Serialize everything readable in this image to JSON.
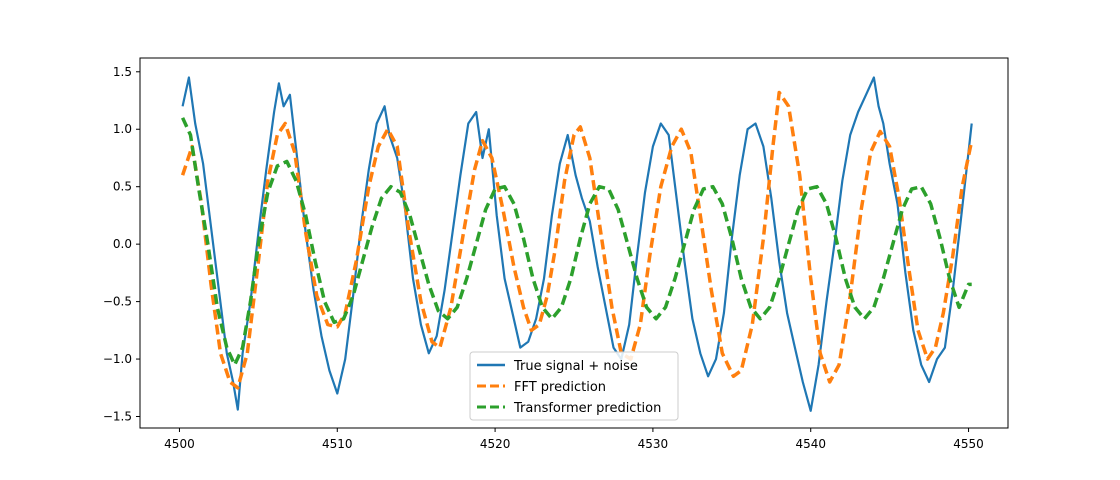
{
  "chart_data": {
    "type": "line",
    "title": "",
    "xlabel": "",
    "ylabel": "",
    "xlim": [
      4497.5,
      4552.5
    ],
    "ylim": [
      -1.6,
      1.62
    ],
    "xticks": [
      4500,
      4510,
      4520,
      4530,
      4540,
      4550
    ],
    "xtick_labels": [
      "4500",
      "4510",
      "4520",
      "4530",
      "4540",
      "4550"
    ],
    "yticks": [
      -1.5,
      -1.0,
      -0.5,
      0.0,
      0.5,
      1.0,
      1.5
    ],
    "ytick_labels": [
      "−1.5",
      "−1.0",
      "−0.5",
      "0.0",
      "0.5",
      "1.0",
      "1.5"
    ],
    "grid": false,
    "legend_position": "bottom-center",
    "series": [
      {
        "name": "True signal + noise",
        "color": "#1f77b4",
        "style": "solid",
        "x": [
          4500.2,
          4500.6,
          4501.0,
          4501.5,
          4502.0,
          4502.5,
          4503.0,
          4503.4,
          4503.7,
          4504.0,
          4504.5,
          4505.0,
          4505.5,
          4506.0,
          4506.3,
          4506.6,
          4507.0,
          4507.5,
          4508.0,
          4508.5,
          4509.0,
          4509.5,
          4510.0,
          4510.5,
          4511.0,
          4511.5,
          4512.0,
          4512.5,
          4513.0,
          4513.3,
          4513.8,
          4514.3,
          4514.8,
          4515.3,
          4515.8,
          4516.3,
          4516.8,
          4517.3,
          4517.8,
          4518.3,
          4518.8,
          4519.2,
          4519.6,
          4520.1,
          4520.6,
          4521.1,
          4521.6,
          4522.1,
          4522.6,
          4523.1,
          4523.6,
          4524.1,
          4524.6,
          4525.1,
          4525.5,
          4526.0,
          4526.5,
          4527.0,
          4527.5,
          4528.0,
          4528.5,
          4529.0,
          4529.5,
          4530.0,
          4530.5,
          4531.0,
          4531.5,
          4532.0,
          4532.5,
          4533.0,
          4533.5,
          4534.0,
          4534.5,
          4535.0,
          4535.5,
          4536.0,
          4536.5,
          4537.0,
          4537.5,
          4538.0,
          4538.5,
          4539.0,
          4539.5,
          4540.0,
          4540.5,
          4541.0,
          4541.5,
          4542.0,
          4542.5,
          4543.0,
          4543.5,
          4544.0,
          4544.3,
          4544.6,
          4545.0,
          4545.5,
          4546.0,
          4546.5,
          4547.0,
          4547.5,
          4548.0,
          4548.5,
          4549.0,
          4549.5,
          4550.0,
          4550.2
        ],
        "values": [
          1.2,
          1.45,
          1.05,
          0.7,
          0.15,
          -0.4,
          -0.95,
          -1.2,
          -1.44,
          -0.95,
          -0.5,
          0.1,
          0.65,
          1.15,
          1.4,
          1.2,
          1.3,
          0.7,
          0.1,
          -0.4,
          -0.8,
          -1.1,
          -1.3,
          -1.0,
          -0.45,
          0.15,
          0.65,
          1.05,
          1.2,
          0.95,
          0.75,
          0.3,
          -0.3,
          -0.7,
          -0.95,
          -0.8,
          -0.4,
          0.1,
          0.6,
          1.05,
          1.15,
          0.75,
          1.0,
          0.25,
          -0.3,
          -0.6,
          -0.9,
          -0.85,
          -0.65,
          -0.3,
          0.25,
          0.7,
          0.95,
          0.6,
          0.4,
          0.2,
          -0.2,
          -0.55,
          -0.9,
          -1.0,
          -0.7,
          -0.1,
          0.45,
          0.85,
          1.05,
          0.95,
          0.4,
          -0.15,
          -0.65,
          -0.95,
          -1.15,
          -1.0,
          -0.6,
          0.05,
          0.6,
          1.0,
          1.05,
          0.85,
          0.4,
          -0.15,
          -0.6,
          -0.9,
          -1.2,
          -1.45,
          -1.05,
          -0.5,
          0.0,
          0.55,
          0.95,
          1.15,
          1.3,
          1.45,
          1.2,
          1.05,
          0.7,
          0.35,
          -0.25,
          -0.75,
          -1.05,
          -1.2,
          -1.0,
          -0.9,
          -0.4,
          0.2,
          0.8,
          1.05
        ]
      },
      {
        "name": "FFT prediction",
        "color": "#ff7f0e",
        "style": "dashed",
        "x": [
          4500.2,
          4500.8,
          4501.4,
          4502.0,
          4502.6,
          4503.2,
          4503.7,
          4504.3,
          4505.0,
          4505.6,
          4506.2,
          4506.7,
          4507.3,
          4508.0,
          4508.7,
          4509.4,
          4510.0,
          4510.5,
          4511.2,
          4512.0,
          4512.6,
          4513.2,
          4513.8,
          4514.5,
          4515.3,
          4516.0,
          4516.5,
          4517.2,
          4518.0,
          4518.7,
          4519.2,
          4519.8,
          4520.5,
          4521.2,
          4521.8,
          4522.3,
          4522.8,
          4523.3,
          4523.8,
          4524.4,
          4525.0,
          4525.4,
          4526.0,
          4526.7,
          4527.4,
          4528.0,
          4528.6,
          4529.2,
          4529.8,
          4530.5,
          4531.2,
          4531.8,
          4532.4,
          4533.0,
          4533.7,
          4534.4,
          4535.1,
          4535.6,
          4536.3,
          4537.0,
          4537.6,
          4538.0,
          4538.6,
          4539.3,
          4540.0,
          4540.6,
          4541.2,
          4541.8,
          4542.5,
          4543.2,
          4543.8,
          4544.4,
          4545.0,
          4545.6,
          4546.2,
          4546.8,
          4547.4,
          4547.9,
          4548.4,
          4549.0,
          4549.6,
          4550.2
        ],
        "values": [
          0.6,
          0.85,
          0.35,
          -0.35,
          -0.95,
          -1.2,
          -1.25,
          -0.95,
          -0.15,
          0.55,
          0.95,
          1.05,
          0.8,
          0.1,
          -0.45,
          -0.7,
          -0.72,
          -0.6,
          -0.15,
          0.5,
          0.85,
          1.0,
          0.85,
          0.15,
          -0.5,
          -0.85,
          -0.9,
          -0.55,
          0.1,
          0.65,
          0.9,
          0.75,
          0.3,
          -0.2,
          -0.55,
          -0.75,
          -0.7,
          -0.45,
          -0.05,
          0.55,
          0.95,
          1.02,
          0.75,
          0.1,
          -0.55,
          -0.95,
          -1.0,
          -0.7,
          -0.1,
          0.5,
          0.85,
          1.0,
          0.8,
          0.25,
          -0.4,
          -0.95,
          -1.15,
          -1.1,
          -0.7,
          0.05,
          0.85,
          1.32,
          1.2,
          0.6,
          -0.3,
          -0.95,
          -1.2,
          -1.05,
          -0.45,
          0.3,
          0.8,
          0.98,
          0.85,
          0.4,
          -0.2,
          -0.75,
          -1.0,
          -0.9,
          -0.6,
          -0.1,
          0.5,
          0.9
        ]
      },
      {
        "name": "Transformer prediction",
        "color": "#2ca02c",
        "style": "dashed",
        "x": [
          4500.2,
          4500.7,
          4501.2,
          4501.8,
          4502.4,
          4503.0,
          4503.5,
          4504.0,
          4504.5,
          4505.0,
          4505.6,
          4506.2,
          4506.8,
          4507.4,
          4508.0,
          4508.6,
          4509.2,
          4509.8,
          4510.4,
          4511.0,
          4511.6,
          4512.2,
          4512.8,
          4513.4,
          4514.0,
          4514.6,
          4515.2,
          4515.8,
          4516.4,
          4517.0,
          4517.6,
          4518.2,
          4518.8,
          4519.4,
          4520.0,
          4520.6,
          4521.2,
          4521.8,
          4522.4,
          4523.0,
          4523.6,
          4524.2,
          4524.8,
          4525.4,
          4526.0,
          4526.6,
          4527.2,
          4527.8,
          4528.4,
          4529.0,
          4529.6,
          4530.2,
          4530.8,
          4531.4,
          4532.0,
          4532.6,
          4533.2,
          4533.8,
          4534.4,
          4535.0,
          4535.6,
          4536.2,
          4536.8,
          4537.4,
          4538.0,
          4538.6,
          4539.2,
          4539.8,
          4540.4,
          4541.0,
          4541.6,
          4542.2,
          4542.8,
          4543.4,
          4544.0,
          4544.6,
          4545.2,
          4545.8,
          4546.4,
          4547.0,
          4547.6,
          4548.2,
          4548.8,
          4549.4,
          4550.0,
          4550.2
        ],
        "values": [
          1.1,
          0.95,
          0.5,
          0.0,
          -0.55,
          -0.9,
          -1.05,
          -0.9,
          -0.5,
          0.0,
          0.45,
          0.68,
          0.72,
          0.55,
          0.25,
          -0.15,
          -0.5,
          -0.68,
          -0.65,
          -0.45,
          -0.15,
          0.15,
          0.4,
          0.5,
          0.45,
          0.25,
          -0.05,
          -0.35,
          -0.58,
          -0.65,
          -0.55,
          -0.3,
          0.0,
          0.3,
          0.48,
          0.5,
          0.35,
          0.05,
          -0.3,
          -0.55,
          -0.65,
          -0.55,
          -0.3,
          0.05,
          0.35,
          0.5,
          0.48,
          0.3,
          0.0,
          -0.3,
          -0.55,
          -0.65,
          -0.55,
          -0.3,
          0.0,
          0.3,
          0.48,
          0.5,
          0.35,
          0.05,
          -0.3,
          -0.55,
          -0.65,
          -0.55,
          -0.3,
          0.0,
          0.3,
          0.48,
          0.5,
          0.35,
          0.05,
          -0.3,
          -0.55,
          -0.65,
          -0.55,
          -0.3,
          0.0,
          0.3,
          0.48,
          0.5,
          0.35,
          0.05,
          -0.3,
          -0.55,
          -0.35,
          -0.35
        ]
      }
    ]
  }
}
